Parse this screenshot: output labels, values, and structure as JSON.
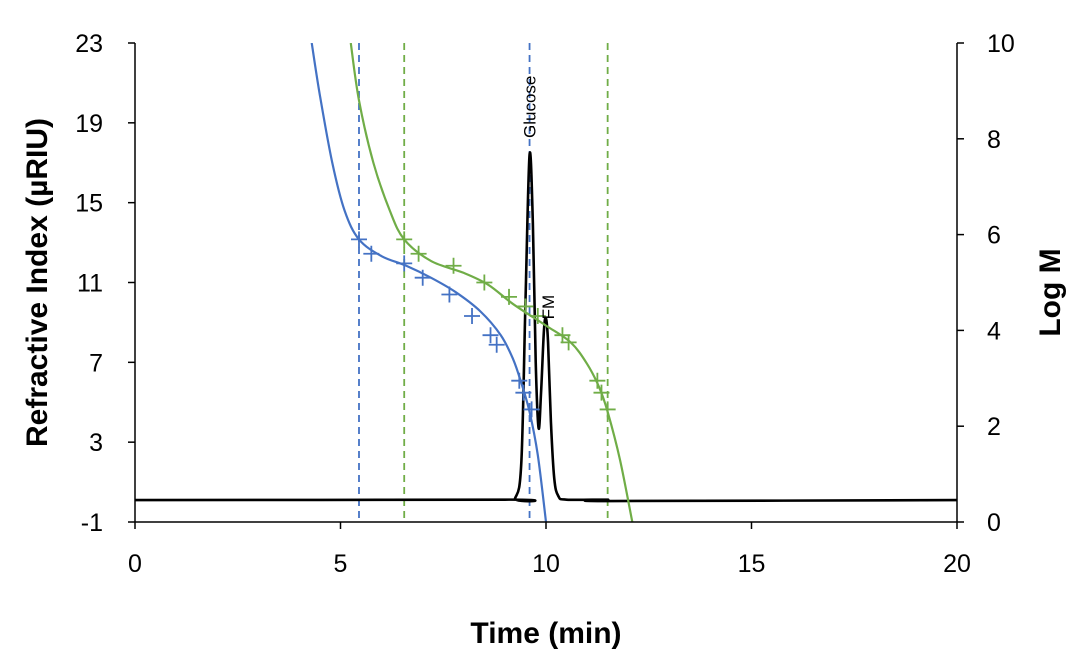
{
  "chart_data": {
    "type": "line",
    "xlabel": "Time (min)",
    "ylabel": "Refractive Index (µRIU)",
    "y2label": "Log M",
    "xlim": [
      0,
      20
    ],
    "ylim": [
      -1,
      23
    ],
    "y2lim": [
      0,
      10
    ],
    "x_ticks": [
      0,
      5,
      10,
      15,
      20
    ],
    "y_ticks": [
      -1,
      3,
      7,
      11,
      15,
      19,
      23
    ],
    "y2_ticks": [
      0,
      2,
      4,
      6,
      8,
      10
    ],
    "grid": false,
    "legend": "none",
    "colors": {
      "blue": "#4472C4",
      "green": "#70AD47",
      "signal": "#000000"
    },
    "annotations": [
      {
        "text": "Glucose",
        "x": 9.6
      },
      {
        "text": "FM",
        "x": 10.0
      }
    ],
    "vertical_lines": [
      {
        "x": 5.45,
        "color": "blue"
      },
      {
        "x": 9.6,
        "color": "blue"
      },
      {
        "x": 6.55,
        "color": "green"
      },
      {
        "x": 11.5,
        "color": "green"
      }
    ],
    "series": [
      {
        "axis": "y1",
        "color": "signal",
        "points": [
          [
            0,
            0.1
          ],
          [
            9.0,
            0.12
          ],
          [
            9.25,
            0.2
          ],
          [
            9.4,
            2.0
          ],
          [
            9.5,
            10.0
          ],
          [
            9.6,
            17.4
          ],
          [
            9.68,
            14.0
          ],
          [
            9.75,
            7.0
          ],
          [
            9.82,
            3.7
          ],
          [
            9.88,
            5.5
          ],
          [
            9.95,
            8.6
          ],
          [
            10.0,
            9.2
          ],
          [
            10.05,
            8.0
          ],
          [
            10.12,
            4.0
          ],
          [
            10.2,
            1.2
          ],
          [
            10.3,
            0.3
          ],
          [
            10.5,
            0.12
          ],
          [
            11.5,
            0.12
          ],
          [
            11.55,
            0.05
          ],
          [
            20,
            0.1
          ]
        ]
      },
      {
        "axis": "y2",
        "color": "blue",
        "points": [
          [
            4.3,
            10.0
          ],
          [
            4.5,
            8.9
          ],
          [
            4.8,
            7.5
          ],
          [
            5.1,
            6.5
          ],
          [
            5.45,
            5.9
          ],
          [
            6.0,
            5.55
          ],
          [
            6.6,
            5.35
          ],
          [
            7.2,
            5.1
          ],
          [
            7.8,
            4.8
          ],
          [
            8.4,
            4.4
          ],
          [
            8.9,
            3.9
          ],
          [
            9.2,
            3.4
          ],
          [
            9.4,
            2.9
          ],
          [
            9.6,
            2.3
          ],
          [
            9.8,
            1.4
          ],
          [
            10.0,
            0.0
          ]
        ]
      },
      {
        "axis": "y2",
        "color": "green",
        "points": [
          [
            5.25,
            10.0
          ],
          [
            5.45,
            8.8
          ],
          [
            5.8,
            7.5
          ],
          [
            6.2,
            6.5
          ],
          [
            6.55,
            5.9
          ],
          [
            7.2,
            5.45
          ],
          [
            8.0,
            5.2
          ],
          [
            8.6,
            4.95
          ],
          [
            9.2,
            4.55
          ],
          [
            10.0,
            4.1
          ],
          [
            10.6,
            3.75
          ],
          [
            11.0,
            3.3
          ],
          [
            11.3,
            2.8
          ],
          [
            11.5,
            2.3
          ],
          [
            11.8,
            1.3
          ],
          [
            12.1,
            0.0
          ]
        ]
      }
    ],
    "markers": [
      {
        "color": "blue",
        "points": [
          [
            5.45,
            5.9
          ],
          [
            5.75,
            5.6
          ],
          [
            6.55,
            5.4
          ],
          [
            7.0,
            5.1
          ],
          [
            7.65,
            4.75
          ],
          [
            8.2,
            4.3
          ],
          [
            8.65,
            3.9
          ],
          [
            8.8,
            3.7
          ],
          [
            9.35,
            2.95
          ],
          [
            9.45,
            2.7
          ],
          [
            9.65,
            2.35
          ]
        ]
      },
      {
        "color": "green",
        "points": [
          [
            6.55,
            5.9
          ],
          [
            6.9,
            5.6
          ],
          [
            7.75,
            5.35
          ],
          [
            8.5,
            5.0
          ],
          [
            9.1,
            4.7
          ],
          [
            9.5,
            4.5
          ],
          [
            9.8,
            4.3
          ],
          [
            10.4,
            3.9
          ],
          [
            10.55,
            3.75
          ],
          [
            11.25,
            2.95
          ],
          [
            11.35,
            2.7
          ],
          [
            11.5,
            2.35
          ]
        ]
      }
    ]
  }
}
